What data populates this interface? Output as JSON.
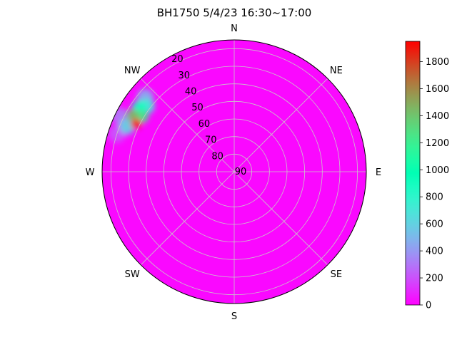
{
  "chart_data": {
    "type": "heatmap",
    "subtype": "polar-sky-heatmap",
    "title": "BH1750  5/4/23  16:30~17:00",
    "directions": [
      {
        "label": "N",
        "azimuth": 0
      },
      {
        "label": "NE",
        "azimuth": 45
      },
      {
        "label": "E",
        "azimuth": 90
      },
      {
        "label": "SE",
        "azimuth": 135
      },
      {
        "label": "S",
        "azimuth": 180
      },
      {
        "label": "SW",
        "azimuth": 225
      },
      {
        "label": "W",
        "azimuth": 270
      },
      {
        "label": "NW",
        "azimuth": 315
      }
    ],
    "elevation_ticks": [
      20,
      30,
      40,
      50,
      60,
      70,
      80,
      90
    ],
    "elevation_range": [
      15,
      90
    ],
    "grid": true,
    "colormap": "rainbow",
    "colorbar": {
      "range": [
        0,
        1950
      ],
      "ticks": [
        0,
        200,
        400,
        600,
        800,
        1000,
        1200,
        1400,
        1600,
        1800
      ]
    },
    "background_value": 20,
    "hotspots": [
      {
        "azimuth": 296,
        "elevation": 28,
        "value": 1900
      },
      {
        "azimuth": 299,
        "elevation": 24,
        "value": 1450
      },
      {
        "azimuth": 301,
        "elevation": 29,
        "value": 1250
      },
      {
        "azimuth": 304,
        "elevation": 25,
        "value": 900
      },
      {
        "azimuth": 307,
        "elevation": 28,
        "value": 700
      },
      {
        "azimuth": 293,
        "elevation": 24,
        "value": 600
      },
      {
        "azimuth": 310,
        "elevation": 24,
        "value": 450
      },
      {
        "azimuth": 296,
        "elevation": 18,
        "value": 300
      },
      {
        "azimuth": 288,
        "elevation": 20,
        "value": 200
      }
    ]
  }
}
